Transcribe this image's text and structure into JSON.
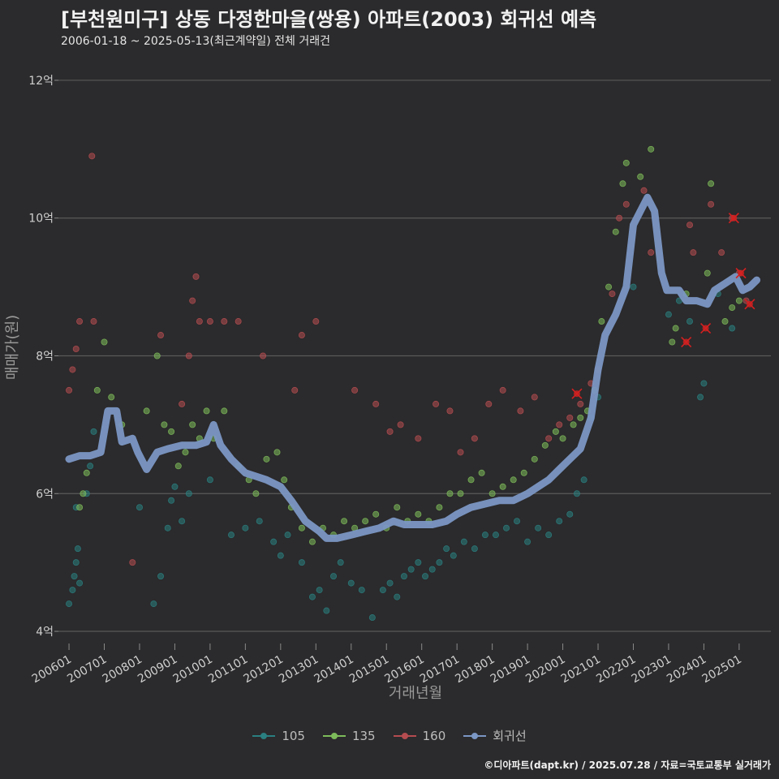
{
  "title": "[부천원미구] 상동 다정한마을(쌍용) 아파트(2003) 회귀선 예측",
  "subtitle": "2006-01-18 ~ 2025-05-13(최근계약일) 전체 거래건",
  "caption": "©디아파트(dapt.kr) / 2025.07.28 / 자료=국토교통부 실거래가",
  "chart_data": {
    "type": "scatter",
    "xlabel": "거래년월",
    "ylabel": "매매가(원)",
    "ylim": [
      3.8,
      12.4
    ],
    "xlim": [
      2005.7,
      2025.9
    ],
    "yticks": [
      4,
      6,
      8,
      10,
      12
    ],
    "ytick_labels": [
      "4억",
      "6억",
      "8억",
      "10억",
      "12억"
    ],
    "xticks": [
      2006,
      2007,
      2008,
      2009,
      2010,
      2011,
      2012,
      2013,
      2014,
      2015,
      2016,
      2017,
      2018,
      2019,
      2020,
      2021,
      2022,
      2023,
      2024,
      2025
    ],
    "xtick_labels": [
      "200601",
      "200701",
      "200801",
      "200901",
      "201001",
      "201101",
      "201201",
      "201301",
      "201401",
      "201501",
      "201601",
      "201701",
      "201801",
      "201901",
      "202001",
      "202101",
      "202201",
      "202301",
      "202401",
      "202501"
    ],
    "colors": {
      "s105": "#2a7f80",
      "s135": "#7dbb5a",
      "s160": "#b44c50",
      "regression": "#7b97c4",
      "grid": "#5a5a5a",
      "marker": "#d42020"
    },
    "legend": [
      "105",
      "135",
      "160",
      "회귀선"
    ],
    "series": [
      {
        "name": "105",
        "points": [
          [
            2006.0,
            4.4
          ],
          [
            2006.1,
            4.6
          ],
          [
            2006.15,
            4.8
          ],
          [
            2006.2,
            5.0
          ],
          [
            2006.25,
            5.2
          ],
          [
            2006.3,
            4.7
          ],
          [
            2006.2,
            5.8
          ],
          [
            2006.5,
            6.0
          ],
          [
            2006.6,
            6.4
          ],
          [
            2006.7,
            6.9
          ],
          [
            2008.0,
            5.8
          ],
          [
            2008.4,
            4.4
          ],
          [
            2008.6,
            4.8
          ],
          [
            2008.8,
            5.5
          ],
          [
            2008.9,
            5.9
          ],
          [
            2009.0,
            6.1
          ],
          [
            2009.2,
            5.6
          ],
          [
            2009.4,
            6.0
          ],
          [
            2010.0,
            6.2
          ],
          [
            2010.6,
            5.4
          ],
          [
            2011.0,
            5.5
          ],
          [
            2011.4,
            5.6
          ],
          [
            2011.8,
            5.3
          ],
          [
            2012.0,
            5.1
          ],
          [
            2012.2,
            5.4
          ],
          [
            2012.6,
            5.0
          ],
          [
            2012.9,
            4.5
          ],
          [
            2013.1,
            4.6
          ],
          [
            2013.3,
            4.3
          ],
          [
            2013.5,
            4.8
          ],
          [
            2013.7,
            5.0
          ],
          [
            2014.0,
            4.7
          ],
          [
            2014.3,
            4.6
          ],
          [
            2014.6,
            4.2
          ],
          [
            2014.9,
            4.6
          ],
          [
            2015.1,
            4.7
          ],
          [
            2015.3,
            4.5
          ],
          [
            2015.5,
            4.8
          ],
          [
            2015.7,
            4.9
          ],
          [
            2015.9,
            5.0
          ],
          [
            2016.1,
            4.8
          ],
          [
            2016.3,
            4.9
          ],
          [
            2016.5,
            5.0
          ],
          [
            2016.7,
            5.2
          ],
          [
            2016.9,
            5.1
          ],
          [
            2017.2,
            5.3
          ],
          [
            2017.5,
            5.2
          ],
          [
            2017.8,
            5.4
          ],
          [
            2018.1,
            5.4
          ],
          [
            2018.4,
            5.5
          ],
          [
            2018.7,
            5.6
          ],
          [
            2019.0,
            5.3
          ],
          [
            2019.3,
            5.5
          ],
          [
            2019.6,
            5.4
          ],
          [
            2019.9,
            5.6
          ],
          [
            2020.2,
            5.7
          ],
          [
            2020.4,
            6.0
          ],
          [
            2020.6,
            6.2
          ],
          [
            2020.8,
            7.1
          ],
          [
            2021.0,
            7.4
          ],
          [
            2022.0,
            9.0
          ],
          [
            2023.0,
            8.6
          ],
          [
            2023.3,
            8.8
          ],
          [
            2023.6,
            8.5
          ],
          [
            2023.9,
            7.4
          ],
          [
            2024.0,
            7.6
          ],
          [
            2024.4,
            8.9
          ],
          [
            2024.8,
            8.4
          ]
        ]
      },
      {
        "name": "135",
        "points": [
          [
            2006.3,
            5.8
          ],
          [
            2006.4,
            6.0
          ],
          [
            2006.5,
            6.3
          ],
          [
            2006.8,
            7.5
          ],
          [
            2007.0,
            8.2
          ],
          [
            2007.2,
            7.4
          ],
          [
            2007.5,
            7.0
          ],
          [
            2008.2,
            7.2
          ],
          [
            2008.5,
            8.0
          ],
          [
            2008.7,
            7.0
          ],
          [
            2008.9,
            6.9
          ],
          [
            2009.1,
            6.4
          ],
          [
            2009.3,
            6.6
          ],
          [
            2009.5,
            7.0
          ],
          [
            2009.7,
            6.8
          ],
          [
            2009.9,
            7.2
          ],
          [
            2010.1,
            6.8
          ],
          [
            2010.4,
            7.2
          ],
          [
            2010.8,
            6.4
          ],
          [
            2011.1,
            6.2
          ],
          [
            2011.3,
            6.0
          ],
          [
            2011.6,
            6.5
          ],
          [
            2011.9,
            6.6
          ],
          [
            2012.1,
            6.2
          ],
          [
            2012.3,
            5.8
          ],
          [
            2012.6,
            5.5
          ],
          [
            2012.9,
            5.3
          ],
          [
            2013.2,
            5.5
          ],
          [
            2013.5,
            5.4
          ],
          [
            2013.8,
            5.6
          ],
          [
            2014.1,
            5.5
          ],
          [
            2014.4,
            5.6
          ],
          [
            2014.7,
            5.7
          ],
          [
            2015.0,
            5.5
          ],
          [
            2015.3,
            5.8
          ],
          [
            2015.6,
            5.6
          ],
          [
            2015.9,
            5.7
          ],
          [
            2016.2,
            5.6
          ],
          [
            2016.5,
            5.8
          ],
          [
            2016.8,
            6.0
          ],
          [
            2017.1,
            6.0
          ],
          [
            2017.4,
            6.2
          ],
          [
            2017.7,
            6.3
          ],
          [
            2018.0,
            6.0
          ],
          [
            2018.3,
            6.1
          ],
          [
            2018.6,
            6.2
          ],
          [
            2018.9,
            6.3
          ],
          [
            2019.2,
            6.5
          ],
          [
            2019.5,
            6.7
          ],
          [
            2019.8,
            6.9
          ],
          [
            2020.0,
            6.8
          ],
          [
            2020.3,
            7.0
          ],
          [
            2020.5,
            7.1
          ],
          [
            2020.7,
            7.2
          ],
          [
            2020.9,
            7.5
          ],
          [
            2021.1,
            8.5
          ],
          [
            2021.3,
            9.0
          ],
          [
            2021.5,
            9.8
          ],
          [
            2021.7,
            10.5
          ],
          [
            2021.8,
            10.8
          ],
          [
            2022.2,
            10.6
          ],
          [
            2022.5,
            11.0
          ],
          [
            2023.1,
            8.2
          ],
          [
            2023.2,
            8.4
          ],
          [
            2023.5,
            8.9
          ],
          [
            2024.1,
            9.2
          ],
          [
            2024.2,
            10.5
          ],
          [
            2024.6,
            8.5
          ],
          [
            2024.8,
            8.7
          ],
          [
            2025.0,
            8.8
          ]
        ]
      },
      {
        "name": "160",
        "points": [
          [
            2006.0,
            7.5
          ],
          [
            2006.1,
            7.8
          ],
          [
            2006.2,
            8.1
          ],
          [
            2006.3,
            8.5
          ],
          [
            2006.7,
            8.5
          ],
          [
            2006.65,
            10.9
          ],
          [
            2007.8,
            5.0
          ],
          [
            2008.6,
            8.3
          ],
          [
            2009.2,
            7.3
          ],
          [
            2009.4,
            8.0
          ],
          [
            2009.5,
            8.8
          ],
          [
            2009.6,
            9.15
          ],
          [
            2009.7,
            8.5
          ],
          [
            2010.0,
            8.5
          ],
          [
            2010.4,
            8.5
          ],
          [
            2010.8,
            8.5
          ],
          [
            2011.5,
            8.0
          ],
          [
            2012.4,
            7.5
          ],
          [
            2012.6,
            8.3
          ],
          [
            2013.0,
            8.5
          ],
          [
            2014.1,
            7.5
          ],
          [
            2014.7,
            7.3
          ],
          [
            2015.1,
            6.9
          ],
          [
            2015.4,
            7.0
          ],
          [
            2015.9,
            6.8
          ],
          [
            2016.4,
            7.3
          ],
          [
            2016.8,
            7.2
          ],
          [
            2017.1,
            6.6
          ],
          [
            2017.5,
            6.8
          ],
          [
            2017.9,
            7.3
          ],
          [
            2018.3,
            7.5
          ],
          [
            2018.8,
            7.2
          ],
          [
            2019.2,
            7.4
          ],
          [
            2019.6,
            6.8
          ],
          [
            2019.9,
            7.0
          ],
          [
            2020.2,
            7.1
          ],
          [
            2020.5,
            7.3
          ],
          [
            2020.8,
            7.6
          ],
          [
            2021.0,
            7.8
          ],
          [
            2021.4,
            8.9
          ],
          [
            2021.6,
            10.0
          ],
          [
            2021.8,
            10.2
          ],
          [
            2022.3,
            10.4
          ],
          [
            2022.5,
            9.5
          ],
          [
            2023.6,
            9.9
          ],
          [
            2023.7,
            9.5
          ],
          [
            2024.2,
            10.2
          ],
          [
            2024.5,
            9.5
          ],
          [
            2024.8,
            10.0
          ],
          [
            2025.0,
            9.2
          ],
          [
            2025.2,
            8.8
          ]
        ]
      }
    ],
    "regression": [
      [
        2006.0,
        6.5
      ],
      [
        2006.3,
        6.55
      ],
      [
        2006.6,
        6.55
      ],
      [
        2006.9,
        6.6
      ],
      [
        2007.1,
        7.2
      ],
      [
        2007.35,
        7.2
      ],
      [
        2007.5,
        6.75
      ],
      [
        2007.8,
        6.8
      ],
      [
        2007.95,
        6.6
      ],
      [
        2008.2,
        6.35
      ],
      [
        2008.5,
        6.6
      ],
      [
        2008.8,
        6.65
      ],
      [
        2009.2,
        6.7
      ],
      [
        2009.6,
        6.7
      ],
      [
        2009.9,
        6.75
      ],
      [
        2010.1,
        7.0
      ],
      [
        2010.3,
        6.7
      ],
      [
        2010.6,
        6.5
      ],
      [
        2011.0,
        6.3
      ],
      [
        2011.3,
        6.25
      ],
      [
        2011.6,
        6.2
      ],
      [
        2012.0,
        6.1
      ],
      [
        2012.3,
        5.9
      ],
      [
        2012.7,
        5.6
      ],
      [
        2013.1,
        5.45
      ],
      [
        2013.3,
        5.35
      ],
      [
        2013.6,
        5.35
      ],
      [
        2014.0,
        5.4
      ],
      [
        2014.4,
        5.45
      ],
      [
        2014.8,
        5.5
      ],
      [
        2015.2,
        5.6
      ],
      [
        2015.5,
        5.55
      ],
      [
        2015.9,
        5.55
      ],
      [
        2016.3,
        5.55
      ],
      [
        2016.7,
        5.6
      ],
      [
        2017.0,
        5.7
      ],
      [
        2017.4,
        5.8
      ],
      [
        2017.8,
        5.85
      ],
      [
        2018.2,
        5.9
      ],
      [
        2018.6,
        5.9
      ],
      [
        2019.0,
        6.0
      ],
      [
        2019.3,
        6.1
      ],
      [
        2019.6,
        6.2
      ],
      [
        2019.9,
        6.35
      ],
      [
        2020.2,
        6.5
      ],
      [
        2020.5,
        6.65
      ],
      [
        2020.8,
        7.1
      ],
      [
        2021.0,
        7.8
      ],
      [
        2021.2,
        8.3
      ],
      [
        2021.5,
        8.6
      ],
      [
        2021.8,
        9.0
      ],
      [
        2022.0,
        9.9
      ],
      [
        2022.2,
        10.1
      ],
      [
        2022.4,
        10.3
      ],
      [
        2022.6,
        10.1
      ],
      [
        2022.8,
        9.2
      ],
      [
        2022.95,
        8.95
      ],
      [
        2023.3,
        8.95
      ],
      [
        2023.5,
        8.8
      ],
      [
        2023.8,
        8.8
      ],
      [
        2024.1,
        8.75
      ],
      [
        2024.3,
        8.95
      ],
      [
        2024.6,
        9.05
      ],
      [
        2024.9,
        9.15
      ],
      [
        2025.1,
        8.95
      ],
      [
        2025.3,
        9.0
      ],
      [
        2025.5,
        9.1
      ]
    ],
    "forecast_markers": [
      [
        2020.4,
        7.45
      ],
      [
        2023.5,
        8.2
      ],
      [
        2024.05,
        8.4
      ],
      [
        2024.85,
        10.0
      ],
      [
        2025.05,
        9.2
      ],
      [
        2025.3,
        8.75
      ]
    ]
  }
}
